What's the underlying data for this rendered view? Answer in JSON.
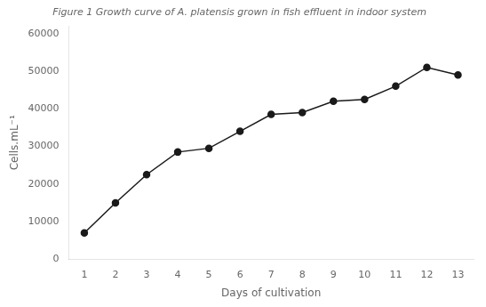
{
  "chart_data": {
    "type": "line",
    "title": "Figure 1 Growth curve of A. platensis grown in fish effluent in indoor system",
    "xlabel": "Days of cultivation",
    "ylabel": "Cells.mL⁻¹",
    "x": [
      1,
      2,
      3,
      4,
      5,
      6,
      7,
      8,
      9,
      10,
      11,
      12,
      13
    ],
    "values": [
      7000,
      15000,
      22500,
      28500,
      29500,
      34000,
      38500,
      39000,
      42000,
      42500,
      46000,
      51000,
      49000
    ],
    "color": "#1a1a1a",
    "marker": "circle",
    "xlim": [
      0.5,
      13.5
    ],
    "ylim": [
      0,
      62000
    ],
    "xticks": [
      1,
      2,
      3,
      4,
      5,
      6,
      7,
      8,
      9,
      10,
      11,
      12,
      13
    ],
    "yticks": [
      0,
      10000,
      20000,
      30000,
      40000,
      50000,
      60000
    ],
    "grid": false
  }
}
